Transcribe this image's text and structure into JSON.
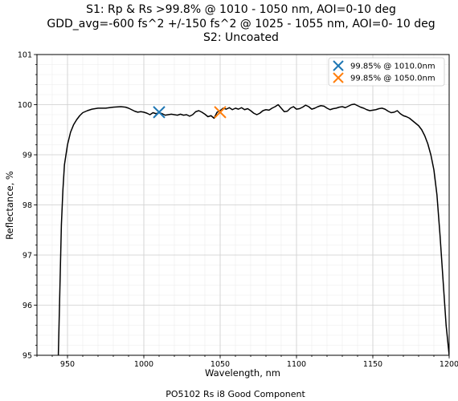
{
  "chart_data": {
    "type": "line",
    "title_lines": [
      "S1: Rp & Rs >99.8% @ 1010 - 1050 nm, AOI=0-10 deg",
      "GDD_avg=-600 fs^2 +/-150 fs^2 @ 1025 - 1055 nm, AOI=0- 10 deg",
      "S2: Uncoated"
    ],
    "xlabel": "Wavelength, nm",
    "ylabel": "Reflectance, %",
    "footer": "PO5102 Rs i8 Good Component",
    "xlim": [
      930,
      1200
    ],
    "ylim": [
      95,
      101
    ],
    "x_ticks": [
      950,
      1000,
      1050,
      1100,
      1150,
      1200
    ],
    "y_ticks": [
      95,
      96,
      97,
      98,
      99,
      100,
      101
    ],
    "grid": true,
    "minor_grid": true,
    "legend_position": "top-right",
    "series": [
      {
        "style": "line",
        "color": "#000000",
        "x": [
          944,
          945,
          946,
          947,
          948,
          950,
          952,
          954,
          956,
          958,
          960,
          963,
          966,
          970,
          975,
          980,
          985,
          988,
          990,
          992,
          994,
          996,
          998,
          1000,
          1002,
          1004,
          1006,
          1008,
          1010,
          1012,
          1014,
          1016,
          1018,
          1020,
          1022,
          1024,
          1026,
          1028,
          1030,
          1032,
          1034,
          1036,
          1038,
          1040,
          1042,
          1044,
          1046,
          1048,
          1050,
          1052,
          1054,
          1056,
          1058,
          1060,
          1062,
          1064,
          1066,
          1068,
          1070,
          1072,
          1074,
          1076,
          1078,
          1080,
          1082,
          1084,
          1086,
          1088,
          1090,
          1092,
          1094,
          1096,
          1098,
          1100,
          1102,
          1104,
          1106,
          1108,
          1110,
          1112,
          1114,
          1116,
          1118,
          1120,
          1122,
          1124,
          1126,
          1128,
          1130,
          1132,
          1134,
          1136,
          1138,
          1140,
          1142,
          1144,
          1146,
          1148,
          1150,
          1152,
          1154,
          1156,
          1158,
          1160,
          1162,
          1164,
          1166,
          1168,
          1170,
          1172,
          1174,
          1176,
          1178,
          1180,
          1182,
          1184,
          1186,
          1188,
          1190,
          1192,
          1194,
          1196,
          1198,
          1200
        ],
        "y": [
          95.0,
          96.3,
          97.6,
          98.3,
          98.8,
          99.2,
          99.45,
          99.6,
          99.7,
          99.78,
          99.84,
          99.88,
          99.91,
          99.93,
          99.93,
          99.95,
          99.96,
          99.95,
          99.93,
          99.9,
          99.87,
          99.85,
          99.86,
          99.85,
          99.83,
          99.8,
          99.84,
          99.82,
          99.84,
          99.82,
          99.79,
          99.8,
          99.81,
          99.8,
          99.79,
          99.81,
          99.79,
          99.8,
          99.77,
          99.8,
          99.86,
          99.88,
          99.85,
          99.81,
          99.76,
          99.78,
          99.73,
          99.85,
          99.88,
          99.93,
          99.91,
          99.94,
          99.9,
          99.93,
          99.91,
          99.94,
          99.9,
          99.92,
          99.88,
          99.83,
          99.8,
          99.83,
          99.88,
          99.9,
          99.89,
          99.93,
          99.96,
          100.0,
          99.93,
          99.86,
          99.87,
          99.93,
          99.96,
          99.91,
          99.92,
          99.95,
          99.99,
          99.96,
          99.91,
          99.93,
          99.96,
          99.98,
          99.97,
          99.93,
          99.9,
          99.92,
          99.93,
          99.95,
          99.96,
          99.94,
          99.97,
          100.0,
          100.01,
          99.98,
          99.95,
          99.93,
          99.9,
          99.88,
          99.89,
          99.9,
          99.92,
          99.93,
          99.91,
          99.87,
          99.84,
          99.85,
          99.88,
          99.82,
          99.78,
          99.76,
          99.73,
          99.68,
          99.63,
          99.58,
          99.5,
          99.38,
          99.22,
          99.0,
          98.7,
          98.2,
          97.4,
          96.5,
          95.6,
          95.0
        ]
      },
      {
        "style": "marker",
        "marker": "x",
        "name": "99.85% @ 1010.0nm",
        "color": "#1f77b4",
        "x": [
          1010
        ],
        "y": [
          99.85
        ]
      },
      {
        "style": "marker",
        "marker": "x",
        "name": "99.85% @ 1050.0nm",
        "color": "#ff7f0e",
        "x": [
          1050
        ],
        "y": [
          99.85
        ]
      }
    ]
  }
}
